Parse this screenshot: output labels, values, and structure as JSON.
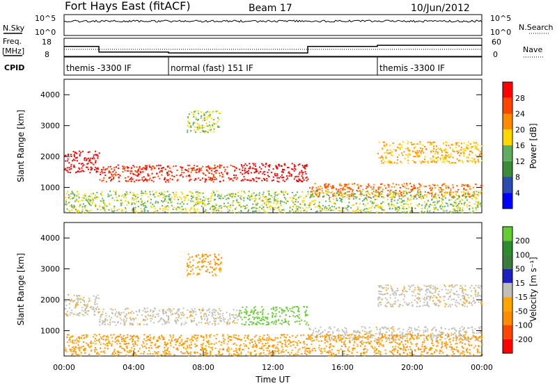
{
  "header": {
    "station": "Fort Hays East (fitACF)",
    "beam": "Beam 17",
    "date": "10/Jun/2012"
  },
  "info_panels": {
    "nsky_label": "N.Sky",
    "nsky_ticks": [
      "10^5",
      "10^0"
    ],
    "nsearch_label": "N.Search",
    "nsearch_ticks": [
      "10^5",
      "10^0"
    ],
    "freq_label": "Freq.",
    "freq_unit": "[MHz]",
    "freq_ticks": [
      "18",
      "8"
    ],
    "nave_label": "Nave",
    "nave_ticks": [
      "60",
      "0"
    ],
    "cpid_label": "CPID",
    "cpid_segments": [
      {
        "start": 0,
        "end": 6,
        "label": "themis -3300 IF"
      },
      {
        "start": 6,
        "end": 18,
        "label": "normal (fast) 151 IF"
      },
      {
        "start": 18,
        "end": 24,
        "label": "themis -3300 IF"
      }
    ],
    "freq_steps": [
      {
        "start": 0,
        "end": 2,
        "value": 14.5
      },
      {
        "start": 2,
        "end": 6,
        "value": 10.8
      },
      {
        "start": 6,
        "end": 14,
        "value": 10.2
      },
      {
        "start": 14,
        "end": 18,
        "value": 14.5
      },
      {
        "start": 18,
        "end": 24,
        "value": 15.2
      }
    ]
  },
  "colors": {
    "power": [
      "#0000ff",
      "#2b4db0",
      "#3a8c3a",
      "#5fae5f",
      "#ffd700",
      "#ff8c00",
      "#ff4500",
      "#ff0000"
    ],
    "velocity_pos": [
      "#2020c0",
      "#3a7a3a",
      "#2e8b2e",
      "#66cc33"
    ],
    "velocity_neutral": "#c0c0b8",
    "velocity_neg": [
      "#ffa500",
      "#ff8c00",
      "#ff4500",
      "#ff0000"
    ]
  },
  "chart_data": [
    {
      "type": "heatmap",
      "name": "power",
      "xlabel": "",
      "ylabel": "Slant Range [km]",
      "xlim": [
        0,
        24
      ],
      "ylim": [
        180,
        4500
      ],
      "yticks": [
        "1000",
        "2000",
        "3000",
        "4000"
      ],
      "colorbar_label": "Power [dB]",
      "colorbar_ticks": [
        "4",
        "8",
        "12",
        "16",
        "20",
        "24",
        "28"
      ],
      "bands": [
        {
          "x": [
            0,
            2
          ],
          "y": [
            1500,
            2200
          ],
          "level": 6
        },
        {
          "x": [
            2,
            10
          ],
          "y": [
            1200,
            1750
          ],
          "level": 5
        },
        {
          "x": [
            10,
            14
          ],
          "y": [
            1200,
            1800
          ],
          "level": 6
        },
        {
          "x": [
            14,
            24
          ],
          "y": [
            700,
            1150
          ],
          "level": 4
        },
        {
          "x": [
            18,
            24
          ],
          "y": [
            1800,
            2500
          ],
          "level": 3
        },
        {
          "x": [
            7,
            9
          ],
          "y": [
            2800,
            3500
          ],
          "level": 2
        },
        {
          "x": [
            0,
            24
          ],
          "y": [
            200,
            900
          ],
          "level": 2
        }
      ]
    },
    {
      "type": "heatmap",
      "name": "velocity",
      "xlabel": "Time UT",
      "ylabel": "Slant Range [km]",
      "xlim": [
        0,
        24
      ],
      "ylim": [
        180,
        4500
      ],
      "xticks": [
        "00:00",
        "04:00",
        "08:00",
        "12:00",
        "16:00",
        "20:00",
        "00:00"
      ],
      "yticks": [
        "1000",
        "2000",
        "3000",
        "4000"
      ],
      "colorbar_label": "Velocity [m s⁻¹]",
      "colorbar_ticks": [
        "200",
        "100",
        "50",
        "15",
        "-15",
        "-50",
        "-100",
        "-200"
      ],
      "bands": [
        {
          "x": [
            0,
            2
          ],
          "y": [
            1500,
            2200
          ],
          "level": 0
        },
        {
          "x": [
            2,
            10
          ],
          "y": [
            1200,
            1750
          ],
          "level": 0
        },
        {
          "x": [
            10,
            14
          ],
          "y": [
            1200,
            1800
          ],
          "level": 2
        },
        {
          "x": [
            14,
            24
          ],
          "y": [
            700,
            1150
          ],
          "level": 0
        },
        {
          "x": [
            18,
            24
          ],
          "y": [
            1800,
            2500
          ],
          "level": 0
        },
        {
          "x": [
            7,
            9
          ],
          "y": [
            2800,
            3500
          ],
          "level": -1
        },
        {
          "x": [
            0,
            24
          ],
          "y": [
            200,
            900
          ],
          "level": -1
        }
      ]
    }
  ]
}
